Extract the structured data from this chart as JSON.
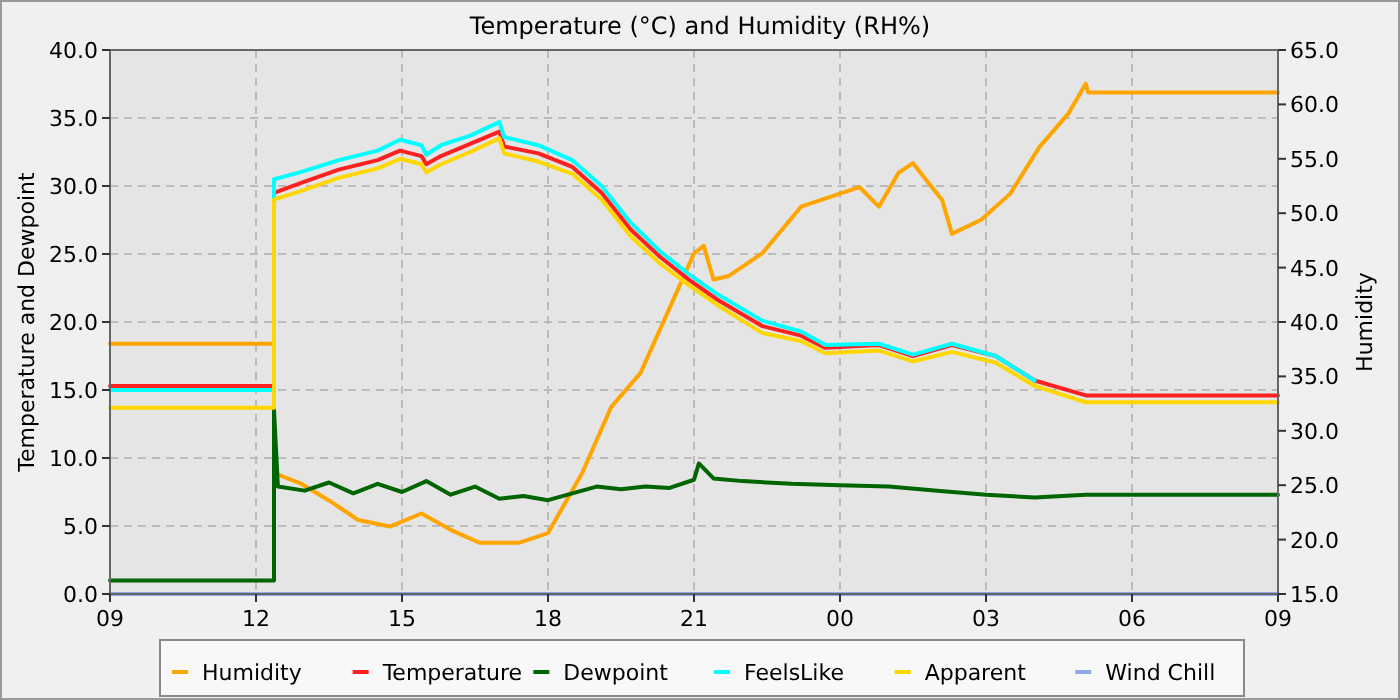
{
  "chart_data": {
    "type": "line",
    "title": "Temperature (°C) and Humidity (RH%)",
    "ylabel": "Temperature and Dewpoint",
    "y2label": "Humidity",
    "xlim": [
      9,
      33
    ],
    "xticks": [
      {
        "value": 9,
        "label": "09"
      },
      {
        "value": 12,
        "label": "12"
      },
      {
        "value": 15,
        "label": "15"
      },
      {
        "value": 18,
        "label": "18"
      },
      {
        "value": 21,
        "label": "21"
      },
      {
        "value": 24,
        "label": "00"
      },
      {
        "value": 27,
        "label": "03"
      },
      {
        "value": 30,
        "label": "06"
      },
      {
        "value": 33,
        "label": "09"
      }
    ],
    "ylim": [
      0,
      40
    ],
    "yticks": [
      {
        "value": 0,
        "label": "0.0"
      },
      {
        "value": 5,
        "label": "5.0"
      },
      {
        "value": 10,
        "label": "10.0"
      },
      {
        "value": 15,
        "label": "15.0"
      },
      {
        "value": 20,
        "label": "20.0"
      },
      {
        "value": 25,
        "label": "25.0"
      },
      {
        "value": 30,
        "label": "30.0"
      },
      {
        "value": 35,
        "label": "35.0"
      },
      {
        "value": 40,
        "label": "40.0"
      }
    ],
    "y2lim": [
      15,
      65
    ],
    "y2ticks": [
      {
        "value": 15,
        "label": "15.0"
      },
      {
        "value": 20,
        "label": "20.0"
      },
      {
        "value": 25,
        "label": "25.0"
      },
      {
        "value": 30,
        "label": "30.0"
      },
      {
        "value": 35,
        "label": "35.0"
      },
      {
        "value": 40,
        "label": "40.0"
      },
      {
        "value": 45,
        "label": "45.0"
      },
      {
        "value": 50,
        "label": "50.0"
      },
      {
        "value": 55,
        "label": "55.0"
      },
      {
        "value": 60,
        "label": "60.0"
      },
      {
        "value": 65,
        "label": "65.0"
      }
    ],
    "grid": true,
    "legend": "bottom",
    "marker": "none",
    "line_style": "solid",
    "series": [
      {
        "name": "Humidity",
        "color": "#ffa500",
        "axis": "y2",
        "x": [
          9,
          12.37,
          12.37,
          12.9,
          13.5,
          14.1,
          14.75,
          15.4,
          16.0,
          16.6,
          17.4,
          18.0,
          18.7,
          19.3,
          19.9,
          20.7,
          21.0,
          21.2,
          21.4,
          21.7,
          22.4,
          23.2,
          24.0,
          24.4,
          24.8,
          25.2,
          25.5,
          26.1,
          26.3,
          26.9,
          27.5,
          28.1,
          28.7,
          29.05,
          29.1,
          33
        ],
        "values": [
          38.0,
          38.0,
          26.1,
          25.2,
          23.6,
          21.8,
          21.2,
          22.4,
          20.9,
          19.7,
          19.7,
          20.6,
          26.1,
          32.2,
          35.3,
          43.3,
          46.3,
          47.0,
          43.9,
          44.2,
          46.3,
          50.6,
          51.8,
          52.4,
          50.6,
          53.7,
          54.6,
          51.2,
          48.1,
          49.4,
          51.8,
          56.1,
          59.2,
          61.9,
          61.1,
          61.1
        ]
      },
      {
        "name": "Temperature",
        "color": "#ff2020",
        "x": [
          9,
          12.37,
          12.37,
          12.9,
          13.7,
          14.5,
          14.96,
          15.4,
          15.5,
          15.8,
          16.4,
          17.0,
          17.1,
          17.8,
          18.5,
          19.1,
          19.7,
          20.3,
          20.9,
          21.5,
          22.4,
          23.2,
          23.7,
          24.8,
          25.5,
          26.3,
          27.2,
          28.0,
          29.05,
          33
        ],
        "values": [
          15.3,
          15.3,
          29.5,
          30.2,
          31.2,
          31.9,
          32.6,
          32.2,
          31.6,
          32.2,
          33.1,
          34.0,
          32.9,
          32.4,
          31.4,
          29.5,
          26.8,
          24.8,
          23.1,
          21.6,
          19.7,
          19.0,
          18.1,
          18.3,
          17.5,
          18.3,
          17.5,
          15.7,
          14.6,
          14.6
        ]
      },
      {
        "name": "Dewpoint",
        "color": "#006400",
        "x": [
          9,
          12.37,
          12.37,
          12.45,
          13,
          13.5,
          14,
          14.5,
          15,
          15.5,
          16,
          16.5,
          17,
          17.5,
          18,
          18.5,
          19,
          19.5,
          20,
          20.5,
          21,
          21.1,
          21.4,
          22,
          23,
          24,
          25,
          26,
          27,
          28,
          29.05,
          33
        ],
        "values": [
          1.0,
          1.0,
          13.5,
          7.9,
          7.6,
          8.2,
          7.4,
          8.1,
          7.5,
          8.3,
          7.3,
          7.9,
          7.0,
          7.2,
          6.9,
          7.4,
          7.9,
          7.7,
          7.9,
          7.8,
          8.4,
          9.6,
          8.5,
          8.3,
          8.1,
          8.0,
          7.9,
          7.6,
          7.3,
          7.1,
          7.3,
          7.3
        ]
      },
      {
        "name": "FeelsLike",
        "color": "#00ffff",
        "x": [
          9,
          12.37,
          12.37,
          12.9,
          13.7,
          14.5,
          14.96,
          15.4,
          15.5,
          15.8,
          16.4,
          17.0,
          17.1,
          17.8,
          18.5,
          19.1,
          19.7,
          20.3,
          20.9,
          21.5,
          22.4,
          23.2,
          23.7,
          24.8,
          25.5,
          26.3,
          27.2,
          28.0
        ],
        "values": [
          15.0,
          15.0,
          30.5,
          31.0,
          31.9,
          32.6,
          33.4,
          33.0,
          32.3,
          33.0,
          33.7,
          34.7,
          33.6,
          33.0,
          31.9,
          30.0,
          27.3,
          25.2,
          23.5,
          22.0,
          20.1,
          19.3,
          18.3,
          18.4,
          17.6,
          18.4,
          17.5,
          15.7
        ]
      },
      {
        "name": "Apparent",
        "color": "#ffd700",
        "x": [
          9,
          12.37,
          12.37,
          12.9,
          13.7,
          14.5,
          14.96,
          15.4,
          15.5,
          15.8,
          16.4,
          17.0,
          17.1,
          17.8,
          18.5,
          19.1,
          19.7,
          20.3,
          20.9,
          21.5,
          22.4,
          23.2,
          23.7,
          24.8,
          25.5,
          26.3,
          27.2,
          28.0,
          29.05,
          33
        ],
        "values": [
          13.7,
          13.7,
          29.0,
          29.6,
          30.6,
          31.3,
          32.0,
          31.6,
          31.0,
          31.6,
          32.5,
          33.5,
          32.4,
          31.8,
          30.9,
          29.0,
          26.3,
          24.3,
          22.7,
          21.2,
          19.2,
          18.6,
          17.7,
          17.9,
          17.1,
          17.8,
          17.0,
          15.3,
          14.1,
          14.1
        ]
      },
      {
        "name": "Wind Chill",
        "color": "#8fa8e8",
        "x": [
          9,
          33
        ],
        "values": [
          0,
          0
        ]
      }
    ]
  }
}
